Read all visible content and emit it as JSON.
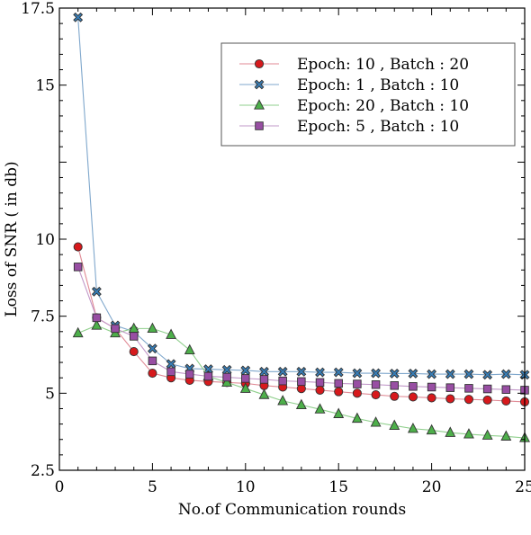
{
  "chart_data": {
    "type": "line",
    "title": "",
    "xlabel": "No.of Communication rounds",
    "ylabel": "Loss of SNR ( in db)",
    "xlim": [
      0,
      25
    ],
    "ylim": [
      2.5,
      17.5
    ],
    "xticks": [
      0,
      5,
      10,
      15,
      20,
      25
    ],
    "xtick_labels": [
      "0",
      "5",
      "10",
      "15",
      "20",
      "25"
    ],
    "yticks": [
      2.5,
      5,
      7.5,
      10,
      15,
      17.5
    ],
    "ytick_labels": [
      "2.5",
      "5",
      "7.5",
      "10",
      "15",
      "17.5"
    ],
    "grid": false,
    "legend_position": "top-right",
    "x": [
      1,
      2,
      3,
      4,
      5,
      6,
      7,
      8,
      9,
      10,
      11,
      12,
      13,
      14,
      15,
      16,
      17,
      18,
      19,
      20,
      21,
      22,
      23,
      24,
      25
    ],
    "series": [
      {
        "name": "Epoch: 10 , Batch : 20",
        "marker": "circle",
        "color": "#d7191c",
        "line_color": "#e08a95",
        "values": [
          9.75,
          7.45,
          7.1,
          6.35,
          5.65,
          5.5,
          5.42,
          5.38,
          5.35,
          5.32,
          5.25,
          5.2,
          5.15,
          5.1,
          5.05,
          5.0,
          4.95,
          4.9,
          4.88,
          4.85,
          4.82,
          4.8,
          4.78,
          4.75,
          4.72
        ]
      },
      {
        "name": "Epoch: 1 , Batch : 10",
        "marker": "x",
        "color": "#377eb8",
        "line_color": "#7fa7cc",
        "values": [
          17.2,
          8.3,
          7.2,
          7.0,
          6.45,
          5.95,
          5.8,
          5.78,
          5.76,
          5.74,
          5.7,
          5.7,
          5.7,
          5.68,
          5.68,
          5.65,
          5.65,
          5.64,
          5.64,
          5.62,
          5.62,
          5.62,
          5.6,
          5.62,
          5.6
        ]
      },
      {
        "name": "Epoch: 20 , Batch : 10",
        "marker": "triangle",
        "color": "#4daf4a",
        "line_color": "#8fcf8c",
        "values": [
          6.95,
          7.2,
          6.95,
          7.1,
          7.1,
          6.9,
          6.4,
          5.55,
          5.35,
          5.15,
          4.95,
          4.75,
          4.62,
          4.48,
          4.33,
          4.18,
          4.05,
          3.95,
          3.85,
          3.8,
          3.72,
          3.67,
          3.63,
          3.6,
          3.55
        ]
      },
      {
        "name": "Epoch: 5 , Batch : 10",
        "marker": "square",
        "color": "#984ea3",
        "line_color": "#c298c9",
        "values": [
          9.1,
          7.45,
          7.1,
          6.85,
          6.05,
          5.7,
          5.62,
          5.55,
          5.52,
          5.48,
          5.45,
          5.4,
          5.38,
          5.35,
          5.32,
          5.3,
          5.28,
          5.25,
          5.22,
          5.2,
          5.18,
          5.16,
          5.14,
          5.12,
          5.1
        ]
      }
    ]
  }
}
